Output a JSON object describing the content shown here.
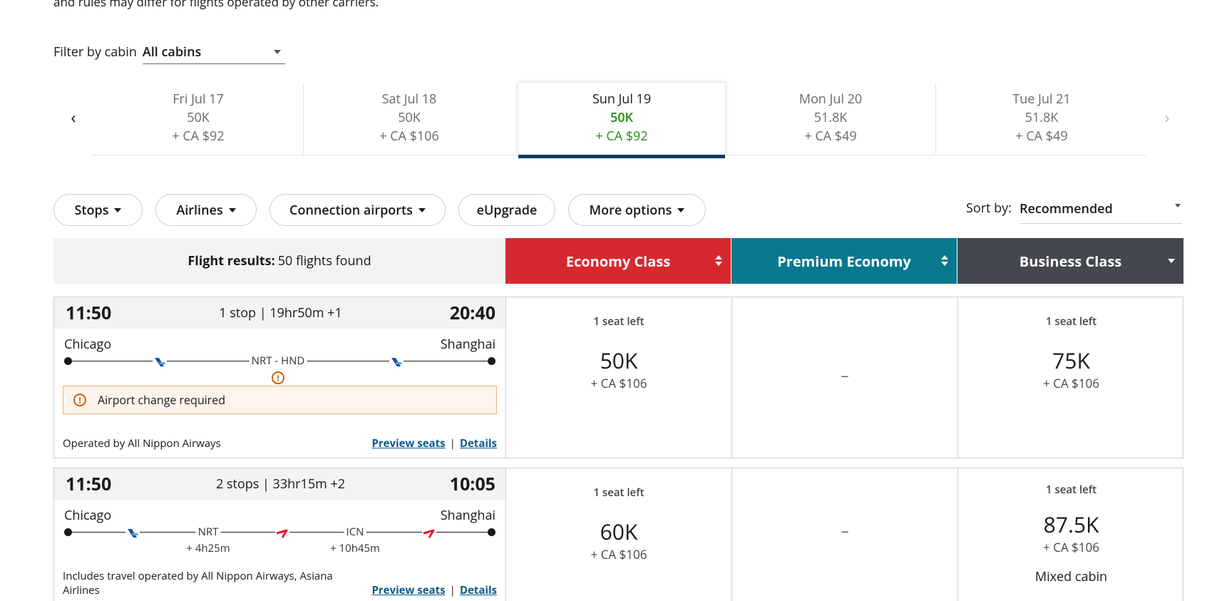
{
  "top_note": "and rules may differ for flights operated by other carriers.",
  "filter": {
    "label": "Filter by cabin",
    "value": "All cabins"
  },
  "dates": [
    {
      "day": "Fri Jul 17",
      "miles": "50K",
      "tax": "+ CA $92"
    },
    {
      "day": "Sat Jul 18",
      "miles": "50K",
      "tax": "+ CA $106"
    },
    {
      "day": "Sun Jul 19",
      "miles": "50K",
      "tax": "+ CA $92"
    },
    {
      "day": "Mon Jul 20",
      "miles": "51.8K",
      "tax": "+ CA $49"
    },
    {
      "day": "Tue Jul 21",
      "miles": "51.8K",
      "tax": "+ CA $49"
    }
  ],
  "date_nav": {
    "prev": "‹",
    "next": "›"
  },
  "filters": [
    "Stops",
    "Airlines",
    "Connection airports",
    "eUpgrade",
    "More options"
  ],
  "sort": {
    "label": "Sort by:",
    "value": "Recommended"
  },
  "results": {
    "label": "Flight results:",
    "count": "50 flights found"
  },
  "cabins": [
    {
      "name": "Economy Class",
      "color": "#d7282f"
    },
    {
      "name": "Premium Economy",
      "color": "#08788f"
    },
    {
      "name": "Business Class",
      "color": "#44474d"
    }
  ],
  "flights": [
    {
      "depart": "11:50",
      "summary": "1 stop | 19hr50m +1",
      "arrive": "20:40",
      "origin": "Chicago",
      "destination": "Shanghai",
      "connection": "NRT - HND",
      "alert": "Airport change required",
      "operated": "Operated by All Nippon Airways",
      "preview": "Preview seats",
      "sep": "|",
      "details": "Details",
      "economy": {
        "seats": "1 seat left",
        "miles": "50K",
        "tax": "+ CA $106"
      },
      "premium": {
        "dash": "–"
      },
      "business": {
        "seats": "1 seat left",
        "miles": "75K",
        "tax": "+ CA $106"
      }
    },
    {
      "depart": "11:50",
      "summary": "2 stops | 33hr15m +2",
      "arrive": "10:05",
      "origin": "Chicago",
      "destination": "Shanghai",
      "stop1": "NRT",
      "stop1_lay": "+ 4h25m",
      "stop2": "ICN",
      "stop2_lay": "+ 10h45m",
      "operated": "Includes travel operated by All Nippon Airways, Asiana Airlines",
      "preview": "Preview seats",
      "sep": "|",
      "details": "Details",
      "economy": {
        "seats": "1 seat left",
        "miles": "60K",
        "tax": "+ CA $106"
      },
      "premium": {
        "dash": "–"
      },
      "business": {
        "seats": "1 seat left",
        "miles": "87.5K",
        "tax": "+ CA $106",
        "note": "Mixed cabin"
      }
    }
  ]
}
